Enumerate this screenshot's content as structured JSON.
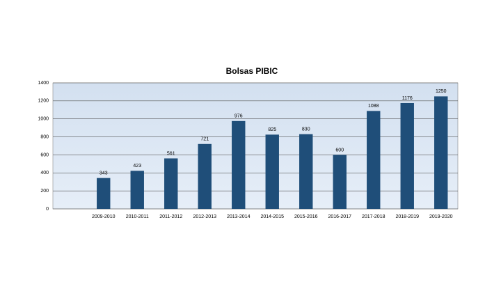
{
  "chart_data": {
    "type": "bar",
    "title": "Bolsas PIBIC",
    "categories": [
      null,
      "2009-2010",
      "2010-2011",
      "2011-2012",
      "2012-2013",
      "2013-2014",
      "2014-2015",
      "2015-2016",
      "2016-2017",
      "2017-2018",
      "2018-2019",
      "2019-2020"
    ],
    "values": [
      null,
      343,
      423,
      561,
      721,
      976,
      825,
      830,
      600,
      1088,
      1176,
      1250
    ],
    "color": "#1f4e79",
    "ylim": [
      0,
      1400
    ],
    "yticks": [
      0,
      200,
      400,
      600,
      800,
      1000,
      1200,
      1400
    ],
    "grid": true
  }
}
